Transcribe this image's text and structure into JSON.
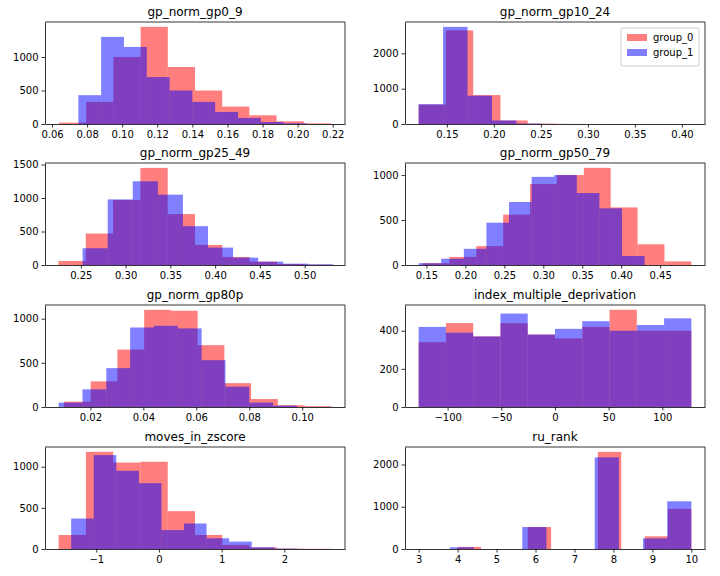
{
  "chart_data": [
    {
      "type": "histogram",
      "title": "gp_norm_gp0_9",
      "series": [
        {
          "color": "#ff0000",
          "bins": [
            0.064,
            0.0795,
            0.095,
            0.1105,
            0.126,
            0.1415,
            0.157,
            0.1725,
            0.188,
            0.2035,
            0.219
          ],
          "values": [
            20,
            330,
            1000,
            1450,
            850,
            500,
            260,
            130,
            40,
            10
          ]
        },
        {
          "color": "#0000ff",
          "bins": [
            0.075,
            0.088,
            0.101,
            0.114,
            0.127,
            0.14,
            0.153,
            0.166,
            0.179,
            0.192,
            0.205
          ],
          "values": [
            430,
            1300,
            1150,
            700,
            500,
            330,
            180,
            90,
            30,
            10
          ]
        }
      ],
      "xlim": [
        0.056,
        0.227
      ],
      "xticks": [
        0.06,
        0.08,
        {
          "value": 0.1,
          "label": "0.10"
        },
        0.12,
        0.14,
        0.16,
        0.18,
        {
          "value": 0.2,
          "label": "0.20"
        },
        0.22
      ],
      "ylim": [
        0,
        1522
      ],
      "yticks": [
        0,
        500,
        1000
      ]
    },
    {
      "type": "histogram",
      "title": "gp_norm_gp10_24",
      "legend": "upper right",
      "series": [
        {
          "name": "group_0",
          "color": "#ff0000",
          "bins": [
            0.12,
            0.149,
            0.178,
            0.207,
            0.236,
            0.265,
            0.294,
            0.323,
            0.352,
            0.381,
            0.41
          ],
          "values": [
            550,
            2650,
            820,
            100,
            10,
            3,
            1,
            0,
            0,
            1
          ]
        },
        {
          "name": "group_1",
          "color": "#0000ff",
          "bins": [
            0.12,
            0.146,
            0.172,
            0.198,
            0.224,
            0.25,
            0.276,
            0.302,
            0.328,
            0.354,
            0.38
          ],
          "values": [
            560,
            2750,
            800,
            100,
            15,
            3,
            1,
            0,
            0,
            1
          ]
        }
      ],
      "xlim": [
        0.1055,
        0.4245
      ],
      "xticks": [
        0.15,
        {
          "value": 0.2,
          "label": "0.20"
        },
        0.25,
        {
          "value": 0.3,
          "label": "0.30"
        },
        0.35,
        {
          "value": 0.4,
          "label": "0.40"
        }
      ],
      "ylim": [
        0,
        2888
      ],
      "yticks": [
        0,
        1000,
        2000
      ]
    },
    {
      "type": "histogram",
      "title": "gp_norm_gp25_49",
      "series": [
        {
          "color": "#ff0000",
          "bins": [
            0.225,
            0.2555,
            0.286,
            0.3165,
            0.347,
            0.3775,
            0.408,
            0.4385,
            0.469,
            0.4995,
            0.53
          ],
          "values": [
            60,
            470,
            970,
            1450,
            760,
            300,
            120,
            50,
            15,
            5
          ]
        },
        {
          "color": "#0000ff",
          "bins": [
            0.252,
            0.28,
            0.308,
            0.336,
            0.364,
            0.392,
            0.42,
            0.448,
            0.476,
            0.504,
            0.532
          ],
          "values": [
            250,
            980,
            1250,
            1050,
            580,
            260,
            110,
            50,
            20,
            10
          ]
        }
      ],
      "xlim": [
        0.21,
        0.545
      ],
      "xticks": [
        0.25,
        {
          "value": 0.3,
          "label": "0.30"
        },
        0.35,
        {
          "value": 0.4,
          "label": "0.40"
        },
        0.45,
        {
          "value": 0.5,
          "label": "0.50"
        }
      ],
      "ylim": [
        0,
        1523
      ],
      "yticks": [
        0,
        500,
        1000,
        1500
      ]
    },
    {
      "type": "histogram",
      "title": "gp_norm_gp50_79",
      "series": [
        {
          "color": "#ff0000",
          "bins": [
            0.145,
            0.1795,
            0.214,
            0.2485,
            0.283,
            0.3175,
            0.352,
            0.3865,
            0.421,
            0.4555,
            0.49
          ],
          "values": [
            20,
            90,
            210,
            560,
            900,
            1000,
            1080,
            640,
            230,
            40
          ]
        },
        {
          "color": "#0000ff",
          "bins": [
            0.14,
            0.169,
            0.198,
            0.227,
            0.256,
            0.285,
            0.314,
            0.343,
            0.372,
            0.401,
            0.43
          ],
          "values": [
            20,
            70,
            180,
            470,
            700,
            980,
            1000,
            800,
            630,
            100
          ]
        }
      ],
      "xlim": [
        0.1225,
        0.5075
      ],
      "xticks": [
        0.15,
        {
          "value": 0.2,
          "label": "0.20"
        },
        0.25,
        {
          "value": 0.3,
          "label": "0.30"
        },
        0.35,
        {
          "value": 0.4,
          "label": "0.40"
        },
        0.45
      ],
      "ylim": [
        0,
        1134
      ],
      "yticks": [
        0,
        500,
        1000
      ]
    },
    {
      "type": "histogram",
      "title": "gp_norm_gp80p",
      "series": [
        {
          "color": "#ff0000",
          "bins": [
            0.01,
            0.0201,
            0.0302,
            0.0403,
            0.0504,
            0.0605,
            0.0706,
            0.0807,
            0.0908,
            0.1009,
            0.111
          ],
          "values": [
            60,
            290,
            650,
            1100,
            1090,
            700,
            270,
            90,
            20,
            10
          ]
        },
        {
          "color": "#0000ff",
          "bins": [
            0.008,
            0.017,
            0.026,
            0.035,
            0.044,
            0.053,
            0.062,
            0.071,
            0.08,
            0.089,
            0.098
          ],
          "values": [
            50,
            200,
            440,
            900,
            920,
            890,
            530,
            230,
            50,
            15
          ]
        }
      ],
      "xlim": [
        0.00285,
        0.11615
      ],
      "xticks": [
        0.02,
        0.04,
        0.06,
        0.08,
        {
          "value": 0.1,
          "label": "0.10"
        }
      ],
      "ylim": [
        0,
        1155
      ],
      "yticks": [
        0,
        500,
        1000
      ]
    },
    {
      "type": "histogram",
      "title": "index_multiple_deprivation",
      "series": [
        {
          "color": "#ff0000",
          "bins": [
            -127,
            -101.6,
            -76.2,
            -50.8,
            -25.4,
            0,
            25.4,
            50.8,
            76.2,
            101.6,
            127
          ],
          "values": [
            340,
            440,
            370,
            440,
            380,
            360,
            420,
            510,
            400,
            400
          ]
        },
        {
          "color": "#0000ff",
          "bins": [
            -127,
            -101.6,
            -76.2,
            -50.8,
            -25.4,
            0,
            25.4,
            50.8,
            76.2,
            101.6,
            127
          ],
          "values": [
            420,
            390,
            370,
            490,
            380,
            410,
            450,
            400,
            430,
            465
          ]
        }
      ],
      "xlim": [
        -139.7,
        139.7
      ],
      "xticks": [
        {
          "value": -100,
          "label": "−100"
        },
        {
          "value": -50,
          "label": "−50"
        },
        0,
        50,
        100
      ],
      "ylim": [
        0,
        535
      ],
      "yticks": [
        0,
        200,
        400
      ]
    },
    {
      "type": "histogram",
      "title": "moves_in_zscore",
      "series": [
        {
          "color": "#ff0000",
          "bins": [
            -1.6,
            -1.165,
            -0.73,
            -0.295,
            0.14,
            0.575,
            1.01,
            1.445,
            1.88,
            2.315,
            2.75
          ],
          "values": [
            170,
            1180,
            1050,
            1060,
            460,
            170,
            50,
            20,
            5,
            2
          ]
        },
        {
          "color": "#0000ff",
          "bins": [
            -1.4,
            -1.04,
            -0.68,
            -0.32,
            0.04,
            0.4,
            0.76,
            1.12,
            1.48,
            1.84,
            2.2
          ],
          "values": [
            370,
            1140,
            950,
            800,
            230,
            310,
            130,
            90,
            20,
            5
          ]
        }
      ],
      "xlim": [
        -1.8175,
        2.9675
      ],
      "xticks": [
        {
          "value": -1,
          "label": "−1"
        },
        0,
        1,
        2
      ],
      "ylim": [
        0,
        1239
      ],
      "yticks": [
        0,
        500,
        1000
      ]
    },
    {
      "type": "histogram",
      "title": "ru_rank",
      "series": [
        {
          "color": "#ff0000",
          "bins": [
            4,
            4.6,
            5.2,
            5.8,
            6.4,
            7,
            7.6,
            8.2,
            8.8,
            9.4,
            10
          ],
          "values": [
            50,
            0,
            0,
            520,
            0,
            0,
            2300,
            0,
            300,
            950
          ]
        },
        {
          "color": "#0000ff",
          "bins": [
            3.8,
            4.42,
            5.04,
            5.66,
            6.28,
            6.9,
            7.52,
            8.14,
            8.76,
            9.38,
            10
          ],
          "values": [
            40,
            0,
            0,
            520,
            0,
            0,
            2170,
            0,
            250,
            1130
          ]
        }
      ],
      "xlim": [
        2.65,
        10.35
      ],
      "xticks": [
        3,
        4,
        5,
        6,
        7,
        8,
        9,
        10
      ],
      "ylim": [
        0,
        2415
      ],
      "yticks": [
        0,
        1000,
        2000
      ]
    }
  ]
}
